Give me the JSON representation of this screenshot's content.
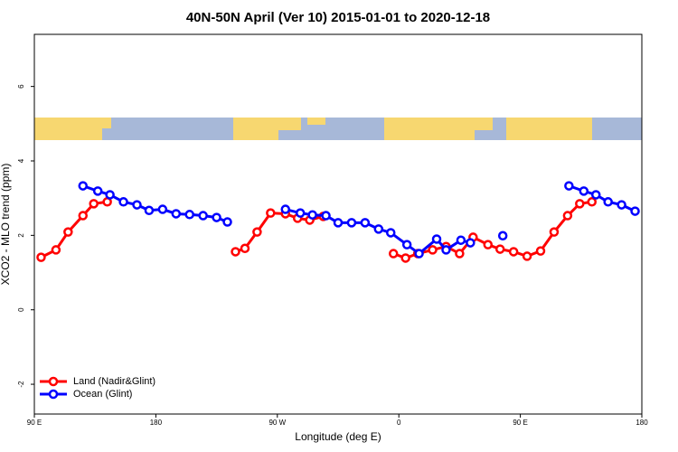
{
  "chart_data": {
    "type": "line",
    "title": "40N-50N April (Ver 10)   2015-01-01 to 2020-12-18",
    "x_label": "Longitude (deg E)",
    "y_label": "XCO2 - MLO trend (ppm)",
    "xlim": [
      90,
      540
    ],
    "ylim": [
      -2.8,
      7.4
    ],
    "xticks": [
      {
        "value": 90,
        "label": "90 E"
      },
      180,
      {
        "value": 270,
        "label": "90 W"
      },
      {
        "value": 360,
        "label": "0"
      },
      {
        "value": 450,
        "label": "90 E"
      },
      {
        "value": 540,
        "label": "180"
      }
    ],
    "yticks": [
      -2,
      0,
      2,
      4,
      6
    ],
    "legend_position": "bottom-left",
    "series": [
      {
        "name": "Land (Nadir&Glint)",
        "color": "#ff0000",
        "x": [
          95,
          106,
          115,
          126,
          134,
          144,
          null,
          239,
          246,
          255,
          265,
          276,
          285,
          294,
          304,
          null,
          356,
          365,
          374,
          385,
          395,
          405,
          415,
          426,
          435,
          445,
          455,
          465,
          475,
          485,
          494,
          503
        ],
        "values": [
          1.41,
          1.61,
          2.09,
          2.53,
          2.85,
          2.9,
          null,
          1.56,
          1.65,
          2.09,
          2.6,
          2.58,
          2.46,
          2.41,
          2.51,
          null,
          1.51,
          1.39,
          1.51,
          1.61,
          1.7,
          1.51,
          1.95,
          1.75,
          1.63,
          1.56,
          1.44,
          1.58,
          2.09,
          2.53,
          2.85,
          2.9
        ]
      },
      {
        "name": "Ocean (Glint)",
        "color": "#0000ff",
        "x": [
          126,
          137,
          146,
          156,
          166,
          175,
          185,
          195,
          205,
          215,
          225,
          233,
          null,
          276,
          287,
          296,
          306,
          315,
          325,
          335,
          345,
          354,
          366,
          375,
          388,
          395,
          406,
          413,
          null,
          437,
          null,
          486,
          497,
          506,
          515,
          525,
          535
        ],
        "values": [
          3.33,
          3.19,
          3.09,
          2.9,
          2.82,
          2.67,
          2.7,
          2.58,
          2.56,
          2.53,
          2.48,
          2.36,
          null,
          2.7,
          2.6,
          2.55,
          2.53,
          2.34,
          2.34,
          2.34,
          2.17,
          2.07,
          1.75,
          1.51,
          1.9,
          1.61,
          1.87,
          1.8,
          null,
          1.99,
          null,
          3.33,
          3.19,
          3.09,
          2.9,
          2.82,
          2.65
        ]
      }
    ]
  }
}
